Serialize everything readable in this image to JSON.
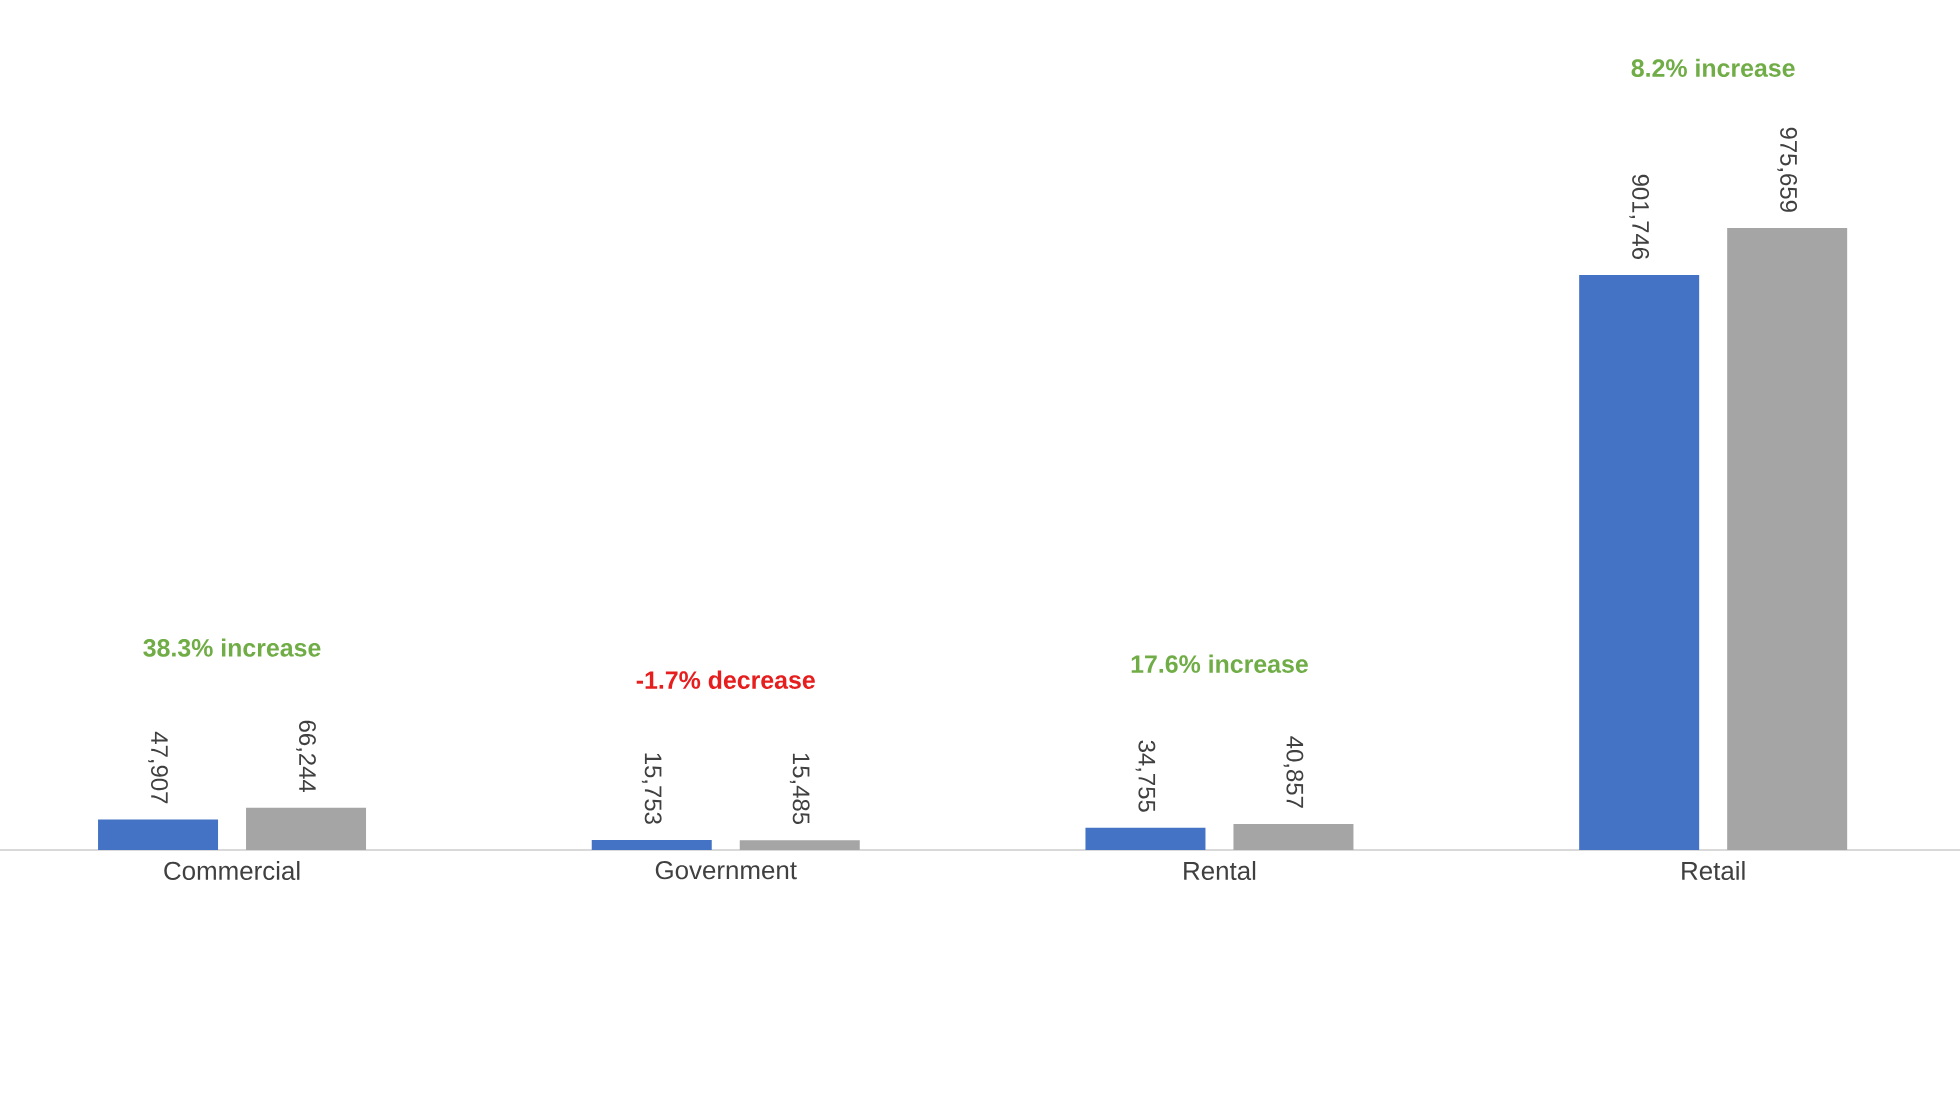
{
  "chart_data": {
    "type": "bar",
    "categories": [
      "Commercial",
      "Government",
      "Rental",
      "Retail"
    ],
    "series": [
      {
        "color": "#4472c4",
        "values": [
          47907,
          15753,
          34755,
          901746
        ],
        "value_labels": [
          "47,907",
          "15,753",
          "34,755",
          "901,746"
        ]
      },
      {
        "color": "#a5a5a5",
        "values": [
          66244,
          15485,
          40857,
          975659
        ],
        "value_labels": [
          "66,244",
          "15,485",
          "40,857",
          "975,659"
        ]
      }
    ],
    "annotations": [
      "38.3% increase",
      "-1.7% decrease",
      "17.6% increase",
      "8.2% increase"
    ]
  }
}
